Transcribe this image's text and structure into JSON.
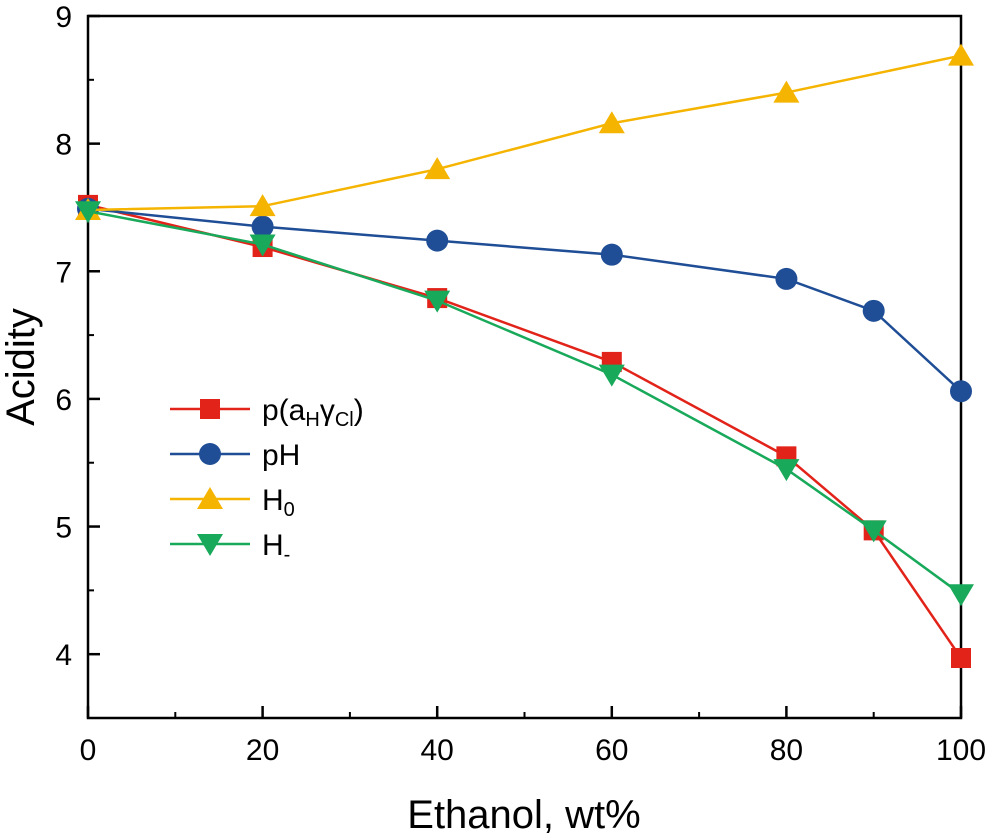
{
  "chart_data": {
    "type": "line",
    "xlabel": "Ethanol, wt%",
    "ylabel": "Acidity",
    "xlim": [
      0,
      100
    ],
    "ylim": [
      3.5,
      9
    ],
    "x_ticks": [
      0,
      20,
      40,
      60,
      80,
      100
    ],
    "y_ticks": [
      4,
      5,
      6,
      7,
      8,
      9
    ],
    "grid": false,
    "legend_position": "center-left",
    "series": [
      {
        "key": "p_aH_gammaCl",
        "name": "p(aHγCl)",
        "legend": {
          "main": "p(a",
          "sub1": "H",
          "mid": "γ",
          "sub2": "Cl",
          "end": ")"
        },
        "marker": "square",
        "color": "#e2231a",
        "x": [
          0,
          20,
          40,
          60,
          80,
          90,
          100
        ],
        "y": [
          7.52,
          7.19,
          6.79,
          6.29,
          5.55,
          4.97,
          3.97
        ]
      },
      {
        "key": "pH",
        "name": "pH",
        "legend": {
          "main": "pH",
          "sub1": "",
          "mid": "",
          "sub2": "",
          "end": ""
        },
        "marker": "circle",
        "color": "#1f4e96",
        "x": [
          0,
          20,
          40,
          60,
          80,
          90,
          100
        ],
        "y": [
          7.49,
          7.35,
          7.24,
          7.13,
          6.94,
          6.69,
          6.06
        ]
      },
      {
        "key": "H0",
        "name": "H0",
        "legend": {
          "main": "H",
          "sub1": "0",
          "mid": "",
          "sub2": "",
          "end": ""
        },
        "marker": "triangle-up",
        "color": "#f5b400",
        "x": [
          0,
          20,
          40,
          60,
          80,
          100
        ],
        "y": [
          7.48,
          7.51,
          7.8,
          8.16,
          8.4,
          8.69
        ]
      },
      {
        "key": "H_minus",
        "name": "H-",
        "legend": {
          "main": "H",
          "sub1": "-",
          "mid": "",
          "sub2": "",
          "end": ""
        },
        "marker": "triangle-down",
        "color": "#18a95a",
        "x": [
          0,
          20,
          40,
          60,
          80,
          90,
          100
        ],
        "y": [
          7.47,
          7.21,
          6.77,
          6.19,
          5.45,
          4.97,
          4.47
        ]
      }
    ]
  }
}
